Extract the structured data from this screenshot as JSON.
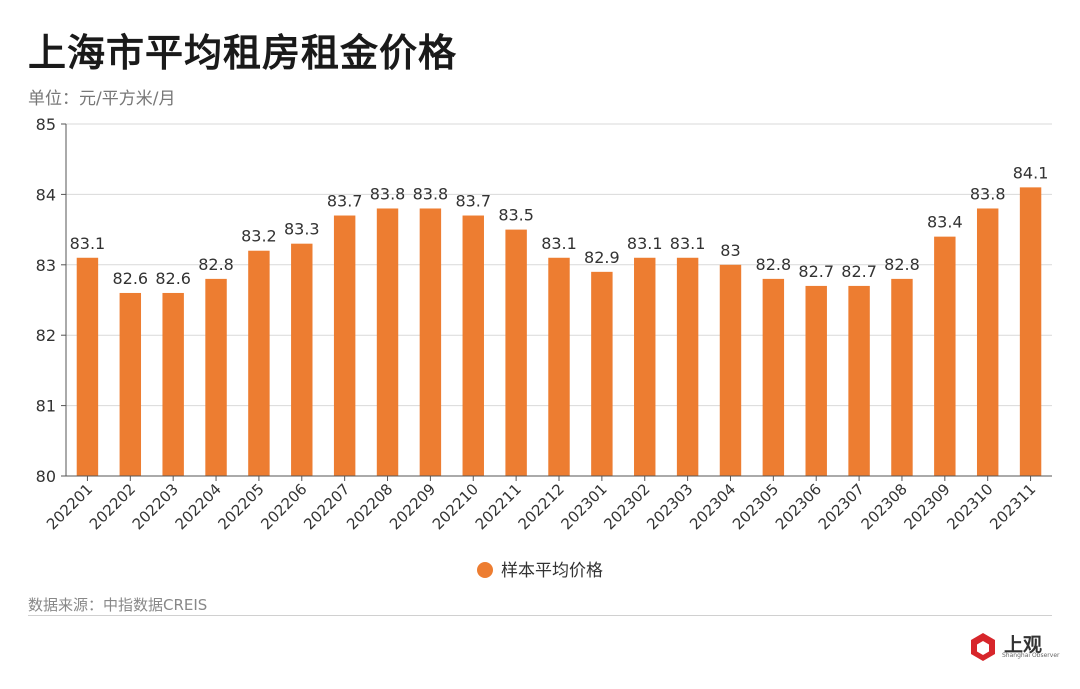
{
  "title": "上海市平均租房租金价格",
  "unit_label": "单位：元/平方米/月",
  "source": "数据来源：中指数据CREIS",
  "logo": {
    "text": "上观",
    "subtext": "Shanghai Observer",
    "icon": "hexagon-logo-icon"
  },
  "colors": {
    "bar": "#ED7D31",
    "grid": "#d9d9d9",
    "axis": "#555555",
    "label": "#333333"
  },
  "chart_data": {
    "type": "bar",
    "categories": [
      "202201",
      "202202",
      "202203",
      "202204",
      "202205",
      "202206",
      "202207",
      "202208",
      "202209",
      "202210",
      "202211",
      "202212",
      "202301",
      "202302",
      "202303",
      "202304",
      "202305",
      "202306",
      "202307",
      "202308",
      "202309",
      "202310",
      "202311"
    ],
    "series": [
      {
        "name": "样本平均价格",
        "values": [
          83.1,
          82.6,
          82.6,
          82.8,
          83.2,
          83.3,
          83.7,
          83.8,
          83.8,
          83.7,
          83.5,
          83.1,
          82.9,
          83.1,
          83.1,
          83,
          82.8,
          82.7,
          82.7,
          82.8,
          83.4,
          83.8,
          84.1
        ],
        "value_labels": [
          "83.1",
          "82.6",
          "82.6",
          "82.8",
          "83.2",
          "83.3",
          "83.7",
          "83.8",
          "83.8",
          "83.7",
          "83.5",
          "83.1",
          "82.9",
          "83.1",
          "83.1",
          "83",
          "82.8",
          "82.7",
          "82.7",
          "82.8",
          "83.4",
          "83.8",
          "84.1"
        ]
      }
    ],
    "yticks": [
      "80",
      "81",
      "82",
      "83",
      "84",
      "85"
    ],
    "ylim": [
      80,
      85
    ],
    "grid": true,
    "legend": "bottom-center",
    "xlabel": "",
    "ylabel": ""
  }
}
